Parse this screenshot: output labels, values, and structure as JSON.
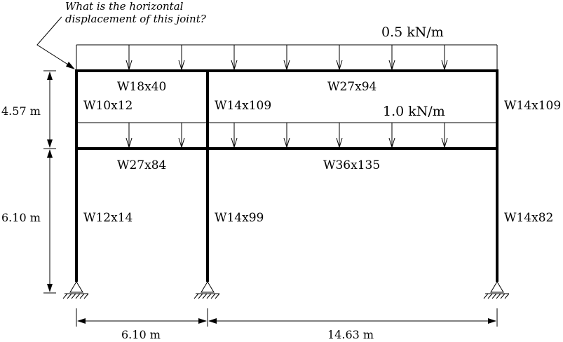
{
  "question": {
    "line1": "What is the horizontal",
    "line2": "displacement of this joint?"
  },
  "loads": {
    "roof": "0.5 kN/m",
    "floor": "1.0 kN/m"
  },
  "members": {
    "roof_left_beam": "W18x40",
    "roof_right_beam": "W27x94",
    "floor_left_beam": "W27x84",
    "floor_right_beam": "W36x135",
    "upper_left_col": "W10x12",
    "upper_mid_col": "W14x109",
    "upper_right_col": "W14x109",
    "lower_left_col": "W12x14",
    "lower_mid_col": "W14x99",
    "lower_right_col": "W14x82"
  },
  "dimensions": {
    "upper_height": "4.57 m",
    "lower_height": "6.10 m",
    "left_bay": "6.10 m",
    "right_bay": "14.63 m"
  }
}
